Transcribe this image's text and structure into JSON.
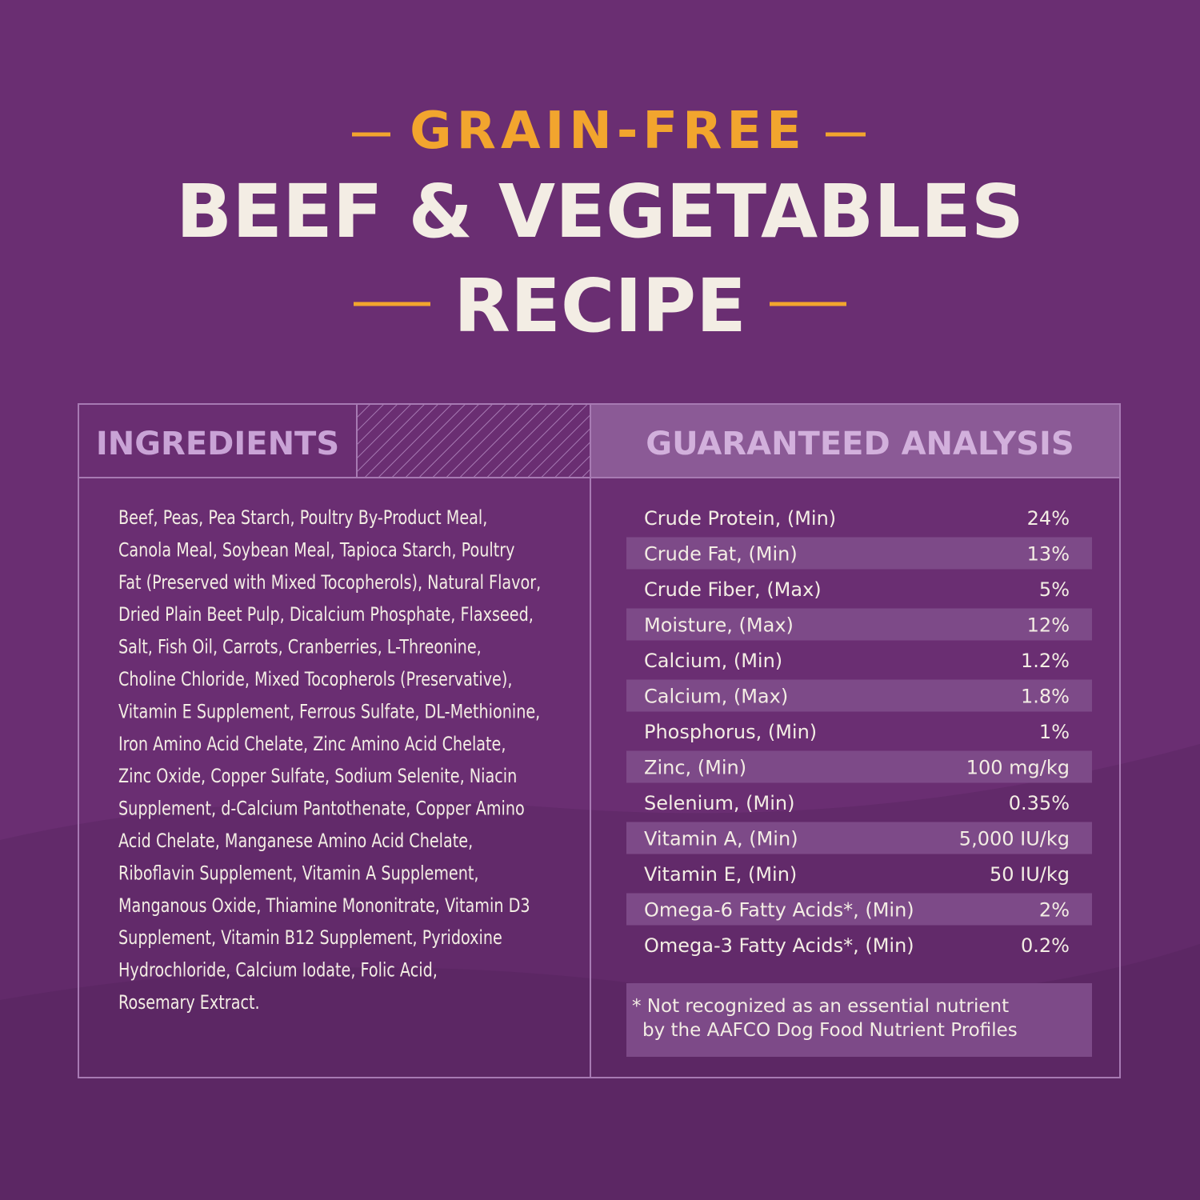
{
  "header": {
    "eyebrow": "GRAIN-FREE",
    "title_line1": "BEEF & VEGETABLES",
    "title_line2": "RECIPE"
  },
  "ingredients": {
    "heading": "INGREDIENTS",
    "lines": [
      "Beef, Peas, Pea Starch, Poultry By-Product Meal,",
      "Canola Meal, Soybean Meal, Tapioca Starch, Poultry",
      "Fat (Preserved with Mixed Tocopherols), Natural Flavor,",
      "Dried Plain Beet Pulp, Dicalcium Phosphate, Flaxseed,",
      "Salt, Fish Oil, Carrots, Cranberries, L-Threonine,",
      "Choline Chloride, Mixed Tocopherols (Preservative),",
      "Vitamin E Supplement, Ferrous Sulfate, DL-Methionine,",
      "Iron Amino Acid Chelate, Zinc Amino Acid Chelate,",
      "Zinc Oxide, Copper Sulfate, Sodium Selenite, Niacin",
      "Supplement, d-Calcium Pantothenate, Copper Amino",
      "Acid Chelate, Manganese Amino Acid Chelate,",
      "Riboflavin Supplement, Vitamin A Supplement,",
      "Manganous Oxide, Thiamine Mononitrate, Vitamin D3",
      "Supplement, Vitamin B12 Supplement, Pyridoxine",
      "Hydrochloride, Calcium Iodate, Folic Acid,",
      "Rosemary Extract."
    ]
  },
  "analysis": {
    "heading": "GUARANTEED ANALYSIS",
    "rows": [
      [
        "Crude Protein, (Min)",
        "24%"
      ],
      [
        "Crude Fat, (Min)",
        "13%"
      ],
      [
        "Crude Fiber, (Max)",
        "5%"
      ],
      [
        "Moisture, (Max)",
        "12%"
      ],
      [
        "Calcium, (Min)",
        "1.2%"
      ],
      [
        "Calcium, (Max)",
        "1.8%"
      ],
      [
        "Phosphorus, (Min)",
        "1%"
      ],
      [
        "Zinc, (Min)",
        "100 mg/kg"
      ],
      [
        "Selenium, (Min)",
        "0.35%"
      ],
      [
        "Vitamin A, (Min)",
        "5,000 IU/kg"
      ],
      [
        "Vitamin E, (Min)",
        "50 IU/kg"
      ],
      [
        "Omega-6 Fatty Acids*, (Min)",
        "2%"
      ],
      [
        "Omega-3 Fatty Acids*, (Min)",
        "0.2%"
      ]
    ],
    "footnote": [
      "* Not recognized as an essential nutrient",
      "by the AAFCO Dog Food Nutrient Profiles"
    ]
  }
}
